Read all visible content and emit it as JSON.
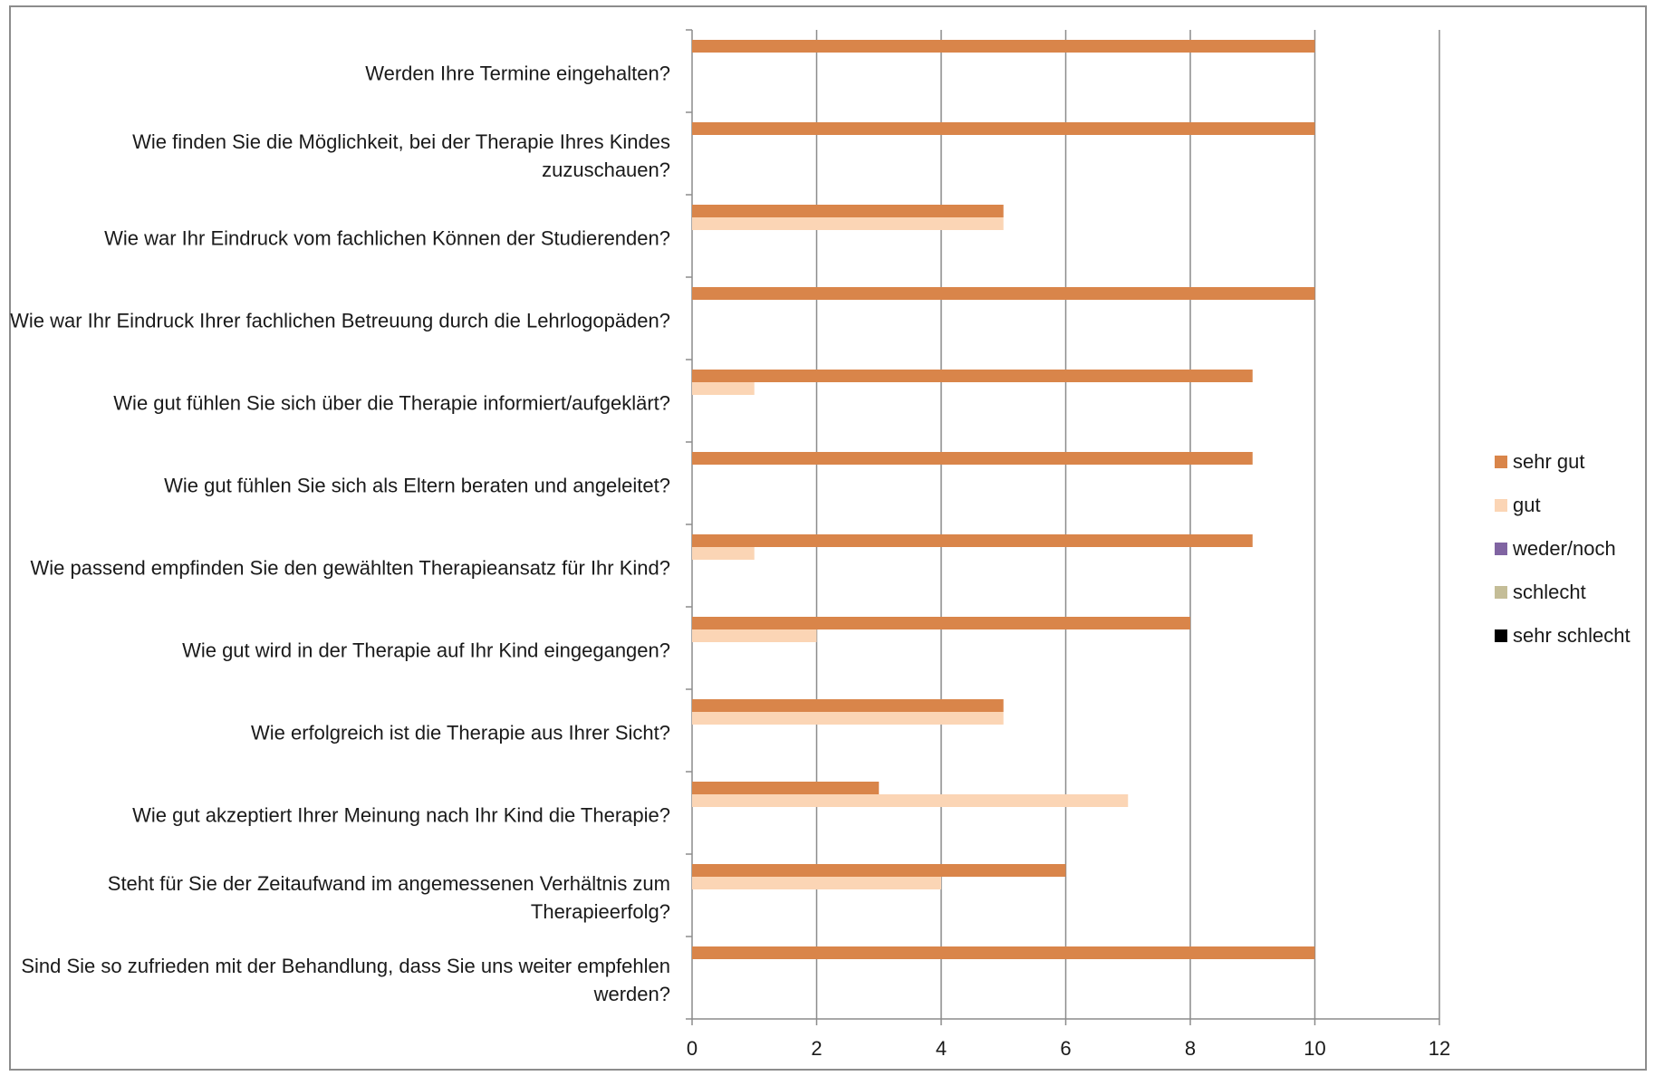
{
  "chart_data": {
    "type": "bar",
    "orientation": "horizontal",
    "categories": [
      "Werden Ihre Termine eingehalten?",
      "Wie finden Sie die Möglichkeit, bei der Therapie Ihres Kindes zuzuschauen?",
      "Wie war Ihr Eindruck vom fachlichen Können der Studierenden?",
      "Wie war Ihr Eindruck Ihrer fachlichen Betreuung durch die Lehrlogopäden?",
      "Wie gut fühlen Sie sich über die Therapie informiert/aufgeklärt?",
      "Wie gut fühlen Sie sich als Eltern beraten und angeleitet?",
      "Wie passend empfinden Sie den gewählten Therapieansatz für Ihr Kind?",
      "Wie gut wird in der Therapie auf Ihr Kind eingegangen?",
      "Wie erfolgreich ist die Therapie aus Ihrer Sicht?",
      "Wie gut akzeptiert Ihrer Meinung nach Ihr Kind die Therapie?",
      "Steht für Sie der Zeitaufwand im angemessenen Verhältnis zum Therapieerfolg?",
      "Sind Sie so zufrieden mit der Behandlung, dass Sie uns weiter empfehlen werden?"
    ],
    "series": [
      {
        "name": "sehr gut",
        "color": "#D9854A",
        "values": [
          10,
          10,
          5,
          10,
          9,
          9,
          9,
          8,
          5,
          3,
          6,
          10
        ]
      },
      {
        "name": "gut",
        "color": "#FBD5B5",
        "values": [
          0,
          0,
          5,
          0,
          1,
          0,
          1,
          2,
          5,
          7,
          4,
          0
        ]
      },
      {
        "name": "weder/noch",
        "color": "#8064A2",
        "values": [
          0,
          0,
          0,
          0,
          0,
          0,
          0,
          0,
          0,
          0,
          0,
          0
        ]
      },
      {
        "name": "schlecht",
        "color": "#C4BD97",
        "values": [
          0,
          0,
          0,
          0,
          0,
          0,
          0,
          0,
          0,
          0,
          0,
          0
        ]
      },
      {
        "name": "sehr schlecht",
        "color": "#000000",
        "values": [
          0,
          0,
          0,
          0,
          0,
          0,
          0,
          0,
          0,
          0,
          0,
          0
        ]
      }
    ],
    "xlim": [
      0,
      12
    ],
    "xticks": [
      "0",
      "2",
      "4",
      "6",
      "8",
      "10",
      "12"
    ],
    "grid": true,
    "legend_position": "right",
    "colors": {
      "gridline": "#8c8c8c",
      "axis": "#8c8c8c",
      "frame": "#8c8c8c"
    }
  }
}
